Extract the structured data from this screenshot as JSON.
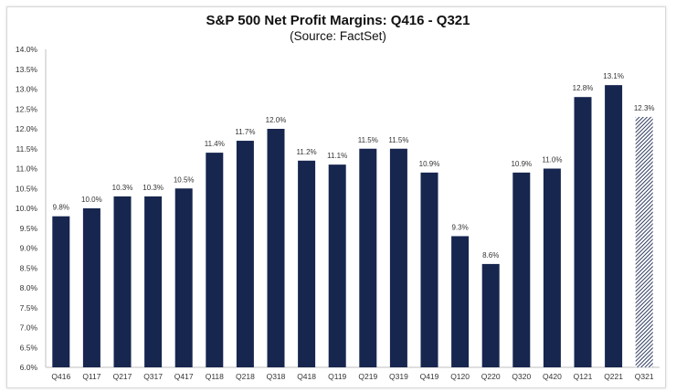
{
  "chart_data": {
    "type": "bar",
    "title": "S&P 500 Net Profit Margins: Q416 - Q321",
    "subtitle": "(Source: FactSet)",
    "categories": [
      "Q416",
      "Q117",
      "Q217",
      "Q317",
      "Q417",
      "Q118",
      "Q218",
      "Q318",
      "Q418",
      "Q119",
      "Q219",
      "Q319",
      "Q419",
      "Q120",
      "Q220",
      "Q320",
      "Q420",
      "Q121",
      "Q221",
      "Q321"
    ],
    "values": [
      9.8,
      10.0,
      10.3,
      10.3,
      10.5,
      11.4,
      11.7,
      12.0,
      11.2,
      11.1,
      11.5,
      11.5,
      10.9,
      9.3,
      8.6,
      10.9,
      11.0,
      12.8,
      13.1,
      12.3
    ],
    "data_labels": [
      "9.8%",
      "10.0%",
      "10.3%",
      "10.3%",
      "10.5%",
      "11.4%",
      "11.7%",
      "12.0%",
      "11.2%",
      "11.1%",
      "11.5%",
      "11.5%",
      "10.9%",
      "9.3%",
      "8.6%",
      "10.9%",
      "11.0%",
      "12.8%",
      "13.1%",
      "12.3%"
    ],
    "estimated": [
      false,
      false,
      false,
      false,
      false,
      false,
      false,
      false,
      false,
      false,
      false,
      false,
      false,
      false,
      false,
      false,
      false,
      false,
      false,
      true
    ],
    "ylim": [
      6.0,
      14.0
    ],
    "yticks": [
      "6.0%",
      "6.5%",
      "7.0%",
      "7.5%",
      "8.0%",
      "8.5%",
      "9.0%",
      "9.5%",
      "10.0%",
      "10.5%",
      "11.0%",
      "11.5%",
      "12.0%",
      "12.5%",
      "13.0%",
      "13.5%",
      "14.0%"
    ],
    "xlabel": "",
    "ylabel": "",
    "grid": false,
    "legend": "none",
    "colors": {
      "bar": "#17264f",
      "estimate_hatch": "#17264f",
      "axis": "#bfbfbf"
    }
  }
}
